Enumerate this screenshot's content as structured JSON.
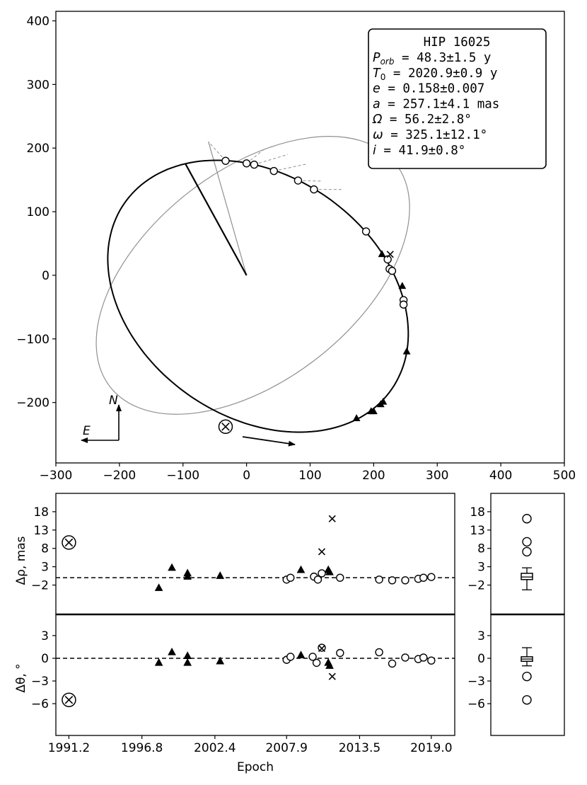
{
  "chart_data": [
    {
      "type": "scatter",
      "panel": "orbit",
      "xlim": [
        -300,
        500
      ],
      "ylim": [
        -295,
        415
      ],
      "xticks": [
        -300,
        -200,
        -100,
        0,
        100,
        200,
        300,
        400,
        500
      ],
      "yticks": [
        -200,
        -100,
        0,
        100,
        200,
        300,
        400
      ],
      "xtick_labels": [
        "−300",
        "−200",
        "−100",
        "0",
        "100",
        "200",
        "300",
        "400",
        "500"
      ],
      "ytick_labels": [
        "−200",
        "−100",
        "0",
        "100",
        "200",
        "300",
        "400"
      ],
      "orbit_params": {
        "P": 48.3,
        "e": 0.158,
        "a": 257.1,
        "Omega": 56.2,
        "omega": 325.1,
        "i": 41.9
      },
      "previous_orbit": {
        "center": [
          10,
          0
        ],
        "rx": 285,
        "ry": 165,
        "tilt_deg": 38
      },
      "info_box": {
        "title": "HIP 16025",
        "lines": [
          {
            "sym": "P",
            "sub": "orb",
            "text": " = 48.3±1.5 y"
          },
          {
            "sym": "T",
            "sub": "0",
            "text": "  = 2020.9±0.9 y"
          },
          {
            "sym": "e",
            "sub": "",
            "text": "   = 0.158±0.007"
          },
          {
            "sym": "a",
            "sub": "",
            "text": "   = 257.1±4.1 mas"
          },
          {
            "sym": "Ω",
            "sub": "",
            "text": "   = 56.2±2.8°"
          },
          {
            "sym": "ω",
            "sub": "",
            "text": "   = 325.1±12.1°"
          },
          {
            "sym": "i",
            "sub": "",
            "text": "   = 41.9±0.8°"
          }
        ]
      },
      "compass": {
        "north": "N",
        "east": "E"
      },
      "circles": [
        [
          -33,
          180
        ],
        [
          0,
          176
        ],
        [
          12,
          174
        ],
        [
          43,
          164
        ],
        [
          81,
          149
        ],
        [
          106,
          135
        ],
        [
          188,
          69
        ],
        [
          222,
          25
        ],
        [
          225,
          10
        ],
        [
          229,
          7
        ],
        [
          247,
          -39
        ],
        [
          247,
          -46
        ]
      ],
      "triangles": [
        [
          213,
          33
        ],
        [
          245,
          -17
        ],
        [
          252,
          -120
        ],
        [
          215,
          -199
        ],
        [
          211,
          -203
        ],
        [
          200,
          -214
        ],
        [
          196,
          -214
        ],
        [
          173,
          -225
        ]
      ],
      "crosses": [
        [
          226,
          33
        ]
      ],
      "circled_cross": [
        -33,
        -238
      ]
    },
    {
      "type": "scatter",
      "panel": "rho residuals",
      "ylabel": "Δρ, mas",
      "xlim": [
        1990.2,
        2020.8
      ],
      "ylim": [
        -10,
        23
      ],
      "yticks": [
        -2,
        3,
        8,
        13,
        18
      ],
      "ytick_labels": [
        "−2",
        "3",
        "8",
        "13",
        "18"
      ],
      "circles": [
        [
          2007.9,
          -0.5
        ],
        [
          2008.2,
          0
        ],
        [
          2010.0,
          0.3
        ],
        [
          2010.3,
          -0.5
        ],
        [
          2010.6,
          1.2
        ],
        [
          2012.0,
          0
        ],
        [
          2015.0,
          -0.5
        ],
        [
          2016.0,
          -0.7
        ],
        [
          2017.0,
          -0.7
        ],
        [
          2018.0,
          -0.3
        ],
        [
          2018.4,
          0
        ],
        [
          2019.0,
          0.2
        ]
      ],
      "triangles": [
        [
          1998.1,
          -2.8
        ],
        [
          1999.1,
          2.7
        ],
        [
          2000.3,
          1.2
        ],
        [
          2000.3,
          0.3
        ],
        [
          2002.8,
          0.5
        ],
        [
          2009.0,
          2.1
        ],
        [
          2011.1,
          2.1
        ],
        [
          2011.2,
          1.5
        ]
      ],
      "crosses": [
        [
          2010.6,
          7.1
        ],
        [
          2011.4,
          16.1
        ]
      ],
      "circled_cross": [
        1991.2,
        9.6
      ],
      "summary_circles": [
        16.1,
        9.8,
        7.1
      ],
      "box": {
        "q1": -0.5,
        "q3": 1.2,
        "median": 0.2,
        "whisker_low": -3.3,
        "whisker_high": 2.7
      }
    },
    {
      "type": "scatter",
      "panel": "theta residuals",
      "ylabel": "Δθ, °",
      "xlabel": "Epoch",
      "xlim": [
        1990.2,
        2020.8
      ],
      "ylim": [
        -10.2,
        5.8
      ],
      "xticks": [
        1991.2,
        1996.8,
        2002.4,
        2007.9,
        2013.5,
        2019.0
      ],
      "xtick_labels": [
        "1991.2",
        "1996.8",
        "2002.4",
        "2007.9",
        "2013.5",
        "2019.0"
      ],
      "yticks": [
        -6,
        -3,
        0,
        3
      ],
      "ytick_labels": [
        "−6",
        "−3",
        "0",
        "3"
      ],
      "circles": [
        [
          2007.9,
          -0.2
        ],
        [
          2008.2,
          0.2
        ],
        [
          2009.9,
          0.2
        ],
        [
          2010.2,
          -0.6
        ],
        [
          2010.6,
          1.4
        ],
        [
          2012.0,
          0.7
        ],
        [
          2015.0,
          0.8
        ],
        [
          2016.0,
          -0.7
        ],
        [
          2017.0,
          0.1
        ],
        [
          2018.0,
          -0.1
        ],
        [
          2018.4,
          0.1
        ],
        [
          2019.0,
          -0.3
        ]
      ],
      "triangles": [
        [
          1998.1,
          -0.6
        ],
        [
          1999.1,
          0.8
        ],
        [
          2000.3,
          0.3
        ],
        [
          2000.3,
          -0.6
        ],
        [
          2002.8,
          -0.4
        ],
        [
          2009.0,
          0.4
        ],
        [
          2011.1,
          -0.6
        ],
        [
          2011.2,
          -1.0
        ]
      ],
      "crosses": [
        [
          2010.6,
          1.3
        ],
        [
          2011.4,
          -2.4
        ]
      ],
      "circled_cross": [
        1991.2,
        -5.5
      ],
      "summary_circles": [
        -2.4,
        -5.5
      ],
      "box": {
        "q1": -0.4,
        "q3": 0.2,
        "median": -0.1,
        "whisker_low": -1.0,
        "whisker_high": 1.4
      }
    }
  ]
}
